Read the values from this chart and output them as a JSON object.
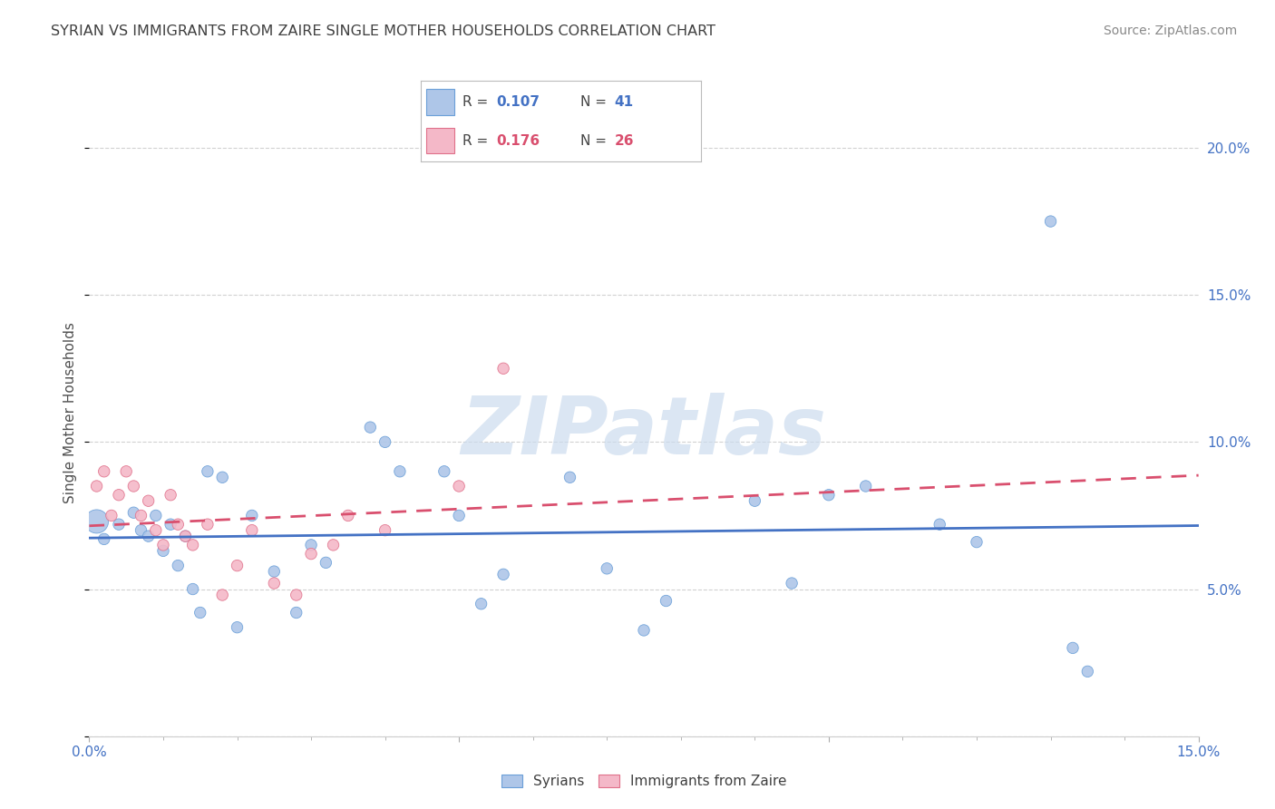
{
  "title": "SYRIAN VS IMMIGRANTS FROM ZAIRE SINGLE MOTHER HOUSEHOLDS CORRELATION CHART",
  "source": "Source: ZipAtlas.com",
  "ylabel": "Single Mother Households",
  "xlim": [
    0.0,
    0.15
  ],
  "ylim": [
    0.0,
    0.22
  ],
  "ytick_values": [
    0.0,
    0.05,
    0.1,
    0.15,
    0.2
  ],
  "xtick_values": [
    0.0,
    0.05,
    0.1,
    0.15
  ],
  "xtick_labels": [
    "0.0%",
    "",
    "",
    "15.0%"
  ],
  "ytick_labels_right": [
    "",
    "5.0%",
    "10.0%",
    "15.0%",
    "20.0%"
  ],
  "legend_r_syrian": "0.107",
  "legend_n_syrian": "41",
  "legend_r_zaire": "0.176",
  "legend_n_zaire": "26",
  "syrian_color": "#aec6e8",
  "syrian_edge_color": "#6a9fd8",
  "zaire_color": "#f4b8c8",
  "zaire_edge_color": "#e0708a",
  "syrian_line_color": "#4472c4",
  "zaire_line_color": "#d94f6e",
  "watermark": "ZIPatlas",
  "watermark_color": "#ccdcee",
  "title_color": "#404040",
  "source_color": "#888888",
  "axis_label_color": "#505050",
  "tick_color": "#4472c4",
  "grid_color": "#cccccc",
  "syrians_x": [
    0.001,
    0.002,
    0.004,
    0.006,
    0.007,
    0.008,
    0.009,
    0.01,
    0.011,
    0.012,
    0.013,
    0.014,
    0.015,
    0.016,
    0.018,
    0.02,
    0.022,
    0.025,
    0.028,
    0.03,
    0.032,
    0.038,
    0.04,
    0.042,
    0.048,
    0.05,
    0.053,
    0.056,
    0.065,
    0.07,
    0.075,
    0.078,
    0.09,
    0.095,
    0.1,
    0.105,
    0.115,
    0.12,
    0.13,
    0.133,
    0.135
  ],
  "syrians_y": [
    0.073,
    0.067,
    0.072,
    0.076,
    0.07,
    0.068,
    0.075,
    0.063,
    0.072,
    0.058,
    0.068,
    0.05,
    0.042,
    0.09,
    0.088,
    0.037,
    0.075,
    0.056,
    0.042,
    0.065,
    0.059,
    0.105,
    0.1,
    0.09,
    0.09,
    0.075,
    0.045,
    0.055,
    0.088,
    0.057,
    0.036,
    0.046,
    0.08,
    0.052,
    0.082,
    0.085,
    0.072,
    0.066,
    0.175,
    0.03,
    0.022
  ],
  "syrians_size": [
    350,
    80,
    80,
    80,
    80,
    80,
    80,
    80,
    80,
    80,
    80,
    80,
    80,
    80,
    80,
    80,
    80,
    80,
    80,
    80,
    80,
    80,
    80,
    80,
    80,
    80,
    80,
    80,
    80,
    80,
    80,
    80,
    80,
    80,
    80,
    80,
    80,
    80,
    80,
    80,
    80
  ],
  "zaire_x": [
    0.001,
    0.002,
    0.003,
    0.004,
    0.005,
    0.006,
    0.007,
    0.008,
    0.009,
    0.01,
    0.011,
    0.012,
    0.013,
    0.014,
    0.016,
    0.018,
    0.02,
    0.022,
    0.025,
    0.028,
    0.03,
    0.033,
    0.035,
    0.04,
    0.05,
    0.056
  ],
  "zaire_y": [
    0.085,
    0.09,
    0.075,
    0.082,
    0.09,
    0.085,
    0.075,
    0.08,
    0.07,
    0.065,
    0.082,
    0.072,
    0.068,
    0.065,
    0.072,
    0.048,
    0.058,
    0.07,
    0.052,
    0.048,
    0.062,
    0.065,
    0.075,
    0.07,
    0.085,
    0.125
  ],
  "zaire_size": [
    80,
    80,
    80,
    80,
    80,
    80,
    80,
    80,
    80,
    80,
    80,
    80,
    80,
    80,
    80,
    80,
    80,
    80,
    80,
    80,
    80,
    80,
    80,
    80,
    80,
    80
  ]
}
